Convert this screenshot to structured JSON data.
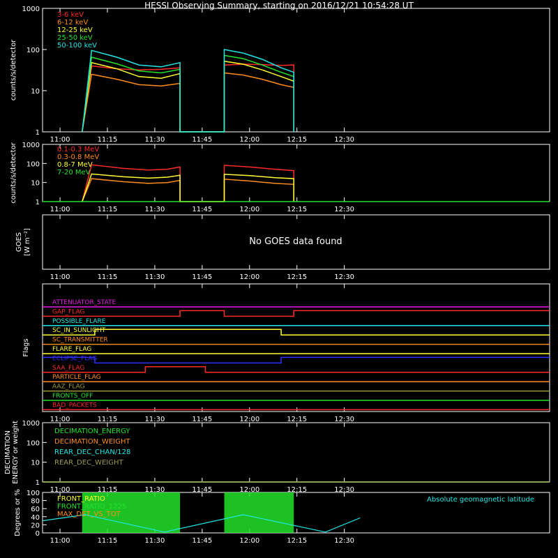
{
  "title": "HESSI Observing Summary, starting on 2016/12/21 10:54:28 UT",
  "colors": {
    "red": "#ff2a2a",
    "orange": "#ff8c1a",
    "yellow": "#ffff33",
    "green": "#22e32a",
    "cyan": "#22e6e6",
    "magenta": "#e61ee6",
    "blue": "#3030ff",
    "white": "#ffffff",
    "olive": "#9a9a3a",
    "darkred": "#c83232",
    "olivegreen": "#9a9a4a"
  },
  "time_ticks": [
    "11:00",
    "11:15",
    "11:30",
    "11:45",
    "12:00",
    "12:15",
    "12:30"
  ],
  "time_range": [
    "10:54:28",
    "13:35:00"
  ],
  "chart_data": [
    {
      "id": "hxr",
      "type": "line",
      "ylabel": "counts/s/detector",
      "yscale": "log",
      "ylim": [
        1,
        1000
      ],
      "yticks": [
        "1",
        "10",
        "100",
        "1000"
      ],
      "series": [
        {
          "name": "3-6 keV",
          "color": "#ff2a2a",
          "x": [
            "11:07",
            "11:10",
            "11:18",
            "11:25",
            "11:32",
            "11:38",
            "11:38",
            "11:52",
            "11:52",
            "11:58",
            "12:04",
            "12:10",
            "12:14",
            "12:14"
          ],
          "y": [
            1,
            40,
            34,
            32,
            33,
            36,
            1,
            1,
            42,
            44,
            43,
            41,
            42,
            1
          ]
        },
        {
          "name": "6-12 keV",
          "color": "#ff8c1a",
          "x": [
            "11:07",
            "11:10",
            "11:18",
            "11:25",
            "11:32",
            "11:38",
            "11:38",
            "11:52",
            "11:52",
            "11:58",
            "12:04",
            "12:10",
            "12:14",
            "12:14"
          ],
          "y": [
            1,
            25,
            19,
            14,
            13,
            15,
            1,
            1,
            27,
            24,
            19,
            14,
            12,
            1
          ]
        },
        {
          "name": "12-25 keV",
          "color": "#ffff33",
          "x": [
            "11:07",
            "11:10",
            "11:18",
            "11:25",
            "11:32",
            "11:38",
            "11:38",
            "11:52",
            "11:52",
            "11:58",
            "12:04",
            "12:10",
            "12:14",
            "12:14"
          ],
          "y": [
            1,
            48,
            34,
            22,
            20,
            26,
            1,
            1,
            52,
            44,
            32,
            22,
            17,
            1
          ]
        },
        {
          "name": "25-50 keV",
          "color": "#22e32a",
          "x": [
            "11:07",
            "11:10",
            "11:18",
            "11:25",
            "11:32",
            "11:38",
            "11:38",
            "11:52",
            "11:52",
            "11:58",
            "12:04",
            "12:10",
            "12:14",
            "12:14"
          ],
          "y": [
            1,
            65,
            45,
            30,
            27,
            33,
            1,
            1,
            72,
            60,
            42,
            28,
            22,
            1
          ]
        },
        {
          "name": "50-100 keV",
          "color": "#22e6e6",
          "x": [
            "11:07",
            "11:10",
            "11:18",
            "11:25",
            "11:32",
            "11:38",
            "11:38",
            "11:52",
            "11:52",
            "11:58",
            "12:04",
            "12:10",
            "12:14",
            "12:14"
          ],
          "y": [
            1,
            95,
            65,
            42,
            38,
            48,
            1,
            1,
            100,
            82,
            58,
            36,
            28,
            1
          ]
        }
      ]
    },
    {
      "id": "gamma",
      "type": "line",
      "ylabel": "counts/s/detector",
      "yscale": "log",
      "ylim": [
        1,
        1000
      ],
      "yticks": [
        "1",
        "10",
        "100",
        "1000"
      ],
      "series": [
        {
          "name": "0.1-0.3 MeV",
          "color": "#ff2a2a",
          "x": [
            "11:07",
            "11:10",
            "11:20",
            "11:28",
            "11:34",
            "11:38",
            "11:38",
            "11:52",
            "11:52",
            "12:00",
            "12:08",
            "12:14",
            "12:14"
          ],
          "y": [
            1,
            85,
            55,
            45,
            50,
            65,
            1,
            1,
            80,
            65,
            50,
            42,
            1
          ]
        },
        {
          "name": "0.3-0.8 MeV",
          "color": "#ff8c1a",
          "x": [
            "11:07",
            "11:10",
            "11:20",
            "11:28",
            "11:34",
            "11:38",
            "11:38",
            "11:52",
            "11:52",
            "12:00",
            "12:08",
            "12:14",
            "12:14"
          ],
          "y": [
            1,
            16,
            11,
            9,
            10,
            13,
            1,
            1,
            15,
            12,
            9,
            8,
            1
          ]
        },
        {
          "name": "0.8-7 MeV",
          "color": "#ffff33",
          "x": [
            "11:07",
            "11:10",
            "11:20",
            "11:28",
            "11:34",
            "11:38",
            "11:38",
            "11:52",
            "11:52",
            "12:00",
            "12:08",
            "12:14",
            "12:14"
          ],
          "y": [
            1,
            28,
            20,
            17,
            19,
            24,
            1,
            1,
            27,
            23,
            18,
            16,
            1
          ]
        },
        {
          "name": "7-20 MeV",
          "color": "#22e32a",
          "x": [
            "10:54:28",
            "13:35"
          ],
          "y": [
            1,
            1
          ]
        }
      ]
    },
    {
      "id": "goes",
      "type": "line",
      "ylabel": "GOES",
      "ylabel_units": "[W m⁻²]",
      "message": "No GOES data found",
      "series": []
    },
    {
      "id": "flags",
      "type": "line",
      "ylabel": "Flags",
      "series": [
        {
          "name": "ATTENUATOR_STATE",
          "color": "#e61ee6",
          "x": [
            "10:54:28",
            "13:35"
          ],
          "y": [
            0,
            0
          ]
        },
        {
          "name": "GAP_FLAG",
          "color": "#ff2a2a",
          "x": [
            "10:54:28",
            "11:38",
            "11:38",
            "11:52",
            "11:52",
            "12:14",
            "12:14",
            "13:35"
          ],
          "y": [
            0,
            0,
            1,
            1,
            0,
            0,
            1,
            1
          ]
        },
        {
          "name": "POSSIBLE_FLARE",
          "color": "#22e6e6",
          "x": [
            "10:54:28",
            "13:35"
          ],
          "y": [
            0,
            0
          ]
        },
        {
          "name": "SC_IN_SUNLIGHT",
          "color": "#ffff33",
          "x": [
            "10:54:28",
            "11:11",
            "11:11",
            "12:10",
            "12:10",
            "13:35"
          ],
          "y": [
            0,
            0,
            1,
            1,
            0,
            0
          ]
        },
        {
          "name": "SC_TRANSMITTER",
          "color": "#ff8c1a",
          "x": [
            "10:54:28",
            "13:35"
          ],
          "y": [
            0,
            0
          ]
        },
        {
          "name": "FLARE_FLAG",
          "color": "#ffff33",
          "x": [
            "10:54:28",
            "13:35"
          ],
          "y": [
            0,
            0
          ]
        },
        {
          "name": "ECLIPSE_FLAG",
          "color": "#3030ff",
          "x": [
            "10:54:28",
            "11:11",
            "11:11",
            "12:10",
            "12:10",
            "13:35"
          ],
          "y": [
            1,
            1,
            0,
            0,
            1,
            1
          ]
        },
        {
          "name": "SAA_FLAG",
          "color": "#ff2a2a",
          "x": [
            "10:54:28",
            "11:27",
            "11:27",
            "11:46",
            "11:46",
            "13:35"
          ],
          "y": [
            0,
            0,
            1,
            1,
            0,
            0
          ]
        },
        {
          "name": "PARTICLE_FLAG",
          "color": "#ff8c1a",
          "x": [
            "10:54:28",
            "13:35"
          ],
          "y": [
            0,
            0
          ]
        },
        {
          "name": "AAZ_FLAG",
          "color": "#9a9a3a",
          "x": [
            "10:54:28",
            "13:35"
          ],
          "y": [
            0,
            0
          ]
        },
        {
          "name": "FRONTS_OFF",
          "color": "#22e32a",
          "x": [
            "10:54:28",
            "13:35"
          ],
          "y": [
            0,
            0
          ]
        },
        {
          "name": "BAD_PACKETS",
          "color": "#ff2a2a",
          "x": [
            "10:54:28",
            "13:35"
          ],
          "y": [
            0,
            0
          ]
        }
      ]
    },
    {
      "id": "decimation",
      "type": "line",
      "ylabel": "DECIMATION\nENERGY or weight",
      "yscale": "log",
      "ylim": [
        1,
        1000
      ],
      "yticks": [
        "1",
        "10",
        "100",
        "1000"
      ],
      "series": [
        {
          "name": "DECIMATION_ENERGY",
          "color": "#22e32a",
          "x": [
            "10:54:28",
            "13:35"
          ],
          "y": [
            1,
            1
          ]
        },
        {
          "name": "DECIMATION_WEIGHT",
          "color": "#ff8c1a",
          "x": [
            "10:54:28",
            "13:35"
          ],
          "y": [
            1,
            1
          ]
        },
        {
          "name": "REAR_DEC_CHAN/128",
          "color": "#22e6e6",
          "x": [
            "10:54:28",
            "13:35"
          ],
          "y": [
            1,
            1
          ]
        },
        {
          "name": "REAR_DEC_WEIGHT",
          "color": "#9a9a4a",
          "x": [
            "10:54:28",
            "13:35"
          ],
          "y": [
            1,
            1
          ]
        }
      ]
    },
    {
      "id": "ratio",
      "type": "line",
      "ylabel": "Degrees or %",
      "ylim": [
        0,
        100
      ],
      "yticks": [
        "0",
        "20",
        "40",
        "60",
        "80",
        "100"
      ],
      "right_label": "Absolute geomagnetic latitude",
      "series": [
        {
          "name": "FRONT_RATIO",
          "color": "#ffff33",
          "x": [
            "11:07",
            "11:38",
            "11:52",
            "12:14"
          ],
          "y": [
            100,
            100,
            100,
            100
          ]
        },
        {
          "name": "FRONT_RATIO_1225",
          "color": "#22e32a",
          "x": [
            "11:07",
            "11:38",
            "11:52",
            "12:14"
          ],
          "y": [
            100,
            100,
            100,
            100
          ]
        },
        {
          "name": "MAX_DET_VS_TOT",
          "color": "#ff8c1a",
          "x": [
            "10:54:28",
            "13:35"
          ],
          "y": [
            0,
            0
          ]
        },
        {
          "name": "Absolute geomagnetic latitude",
          "color": "#22e6e6",
          "x": [
            "10:54:28",
            "11:08",
            "11:33",
            "11:58",
            "12:24",
            "12:35"
          ],
          "y": [
            30,
            45,
            2,
            45,
            2,
            37
          ]
        }
      ]
    }
  ]
}
